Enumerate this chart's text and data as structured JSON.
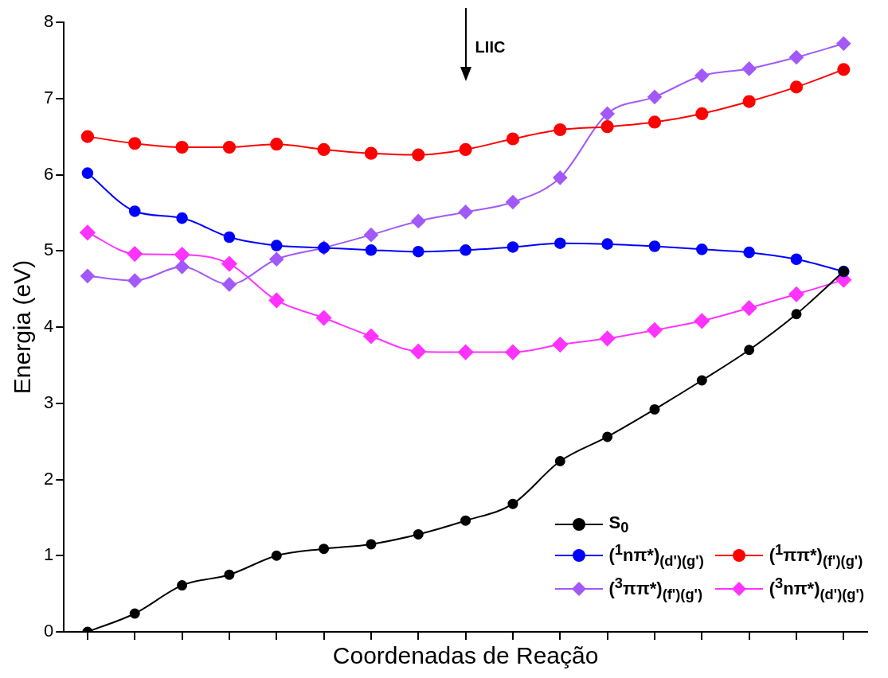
{
  "chart_data": {
    "type": "line",
    "xlabel": "Coordenadas de Reação",
    "ylabel": "Energia (eV)",
    "categories": [
      null,
      null,
      null,
      null,
      null,
      null,
      null,
      null,
      null,
      null,
      null,
      null,
      null,
      null,
      null,
      null,
      null
    ],
    "ylim": [
      0,
      8
    ],
    "yticks": [
      0,
      1,
      2,
      3,
      4,
      5,
      6,
      7,
      8
    ],
    "grid": false,
    "tick_labels": "y",
    "legend": "bottom right",
    "annotations": [
      "LIIC"
    ],
    "series": [
      {
        "name": "S$_{0}$",
        "color": "#000000",
        "marker": "circle",
        "values": [
          0,
          0.24,
          0.61,
          0.75,
          1.0,
          1.09,
          1.15,
          1.28,
          1.46,
          1.68,
          2.24,
          2.56,
          2.92,
          3.3,
          3.7,
          4.17,
          4.73
        ]
      },
      {
        "name": "($^{1}$nπ*)$_{(d')(g')}$",
        "color": "#0000ff",
        "marker": "circle",
        "values": [
          6.02,
          5.52,
          5.43,
          5.18,
          5.07,
          5.04,
          5.01,
          4.99,
          5.01,
          5.05,
          5.1,
          5.09,
          5.06,
          5.02,
          4.98,
          4.89,
          4.73
        ]
      },
      {
        "name": "($^{1}$ππ*)$_{(f')(g')}$",
        "color": "#ff0000",
        "marker": "circle",
        "values": [
          6.5,
          6.41,
          6.36,
          6.36,
          6.4,
          6.33,
          6.28,
          6.26,
          6.33,
          6.47,
          6.59,
          6.63,
          6.69,
          6.8,
          6.96,
          7.15,
          7.38
        ]
      },
      {
        "name": "($^{3}$ππ*)$_{(f')(g')}$",
        "color": "#a259f7",
        "marker": "diamond",
        "values": [
          4.67,
          4.61,
          4.79,
          4.56,
          4.89,
          5.04,
          5.21,
          5.39,
          5.51,
          5.64,
          5.96,
          6.8,
          7.02,
          7.3,
          7.39,
          7.54,
          7.72
        ]
      },
      {
        "name": "($^{3}$nπ*)$_{(d')(g')}$",
        "color": "#ff33ff",
        "marker": "diamond",
        "values": [
          5.24,
          4.96,
          4.95,
          4.83,
          4.35,
          4.12,
          3.88,
          3.68,
          3.67,
          3.67,
          3.77,
          3.85,
          3.96,
          4.08,
          4.25,
          4.43,
          4.62
        ]
      }
    ]
  }
}
